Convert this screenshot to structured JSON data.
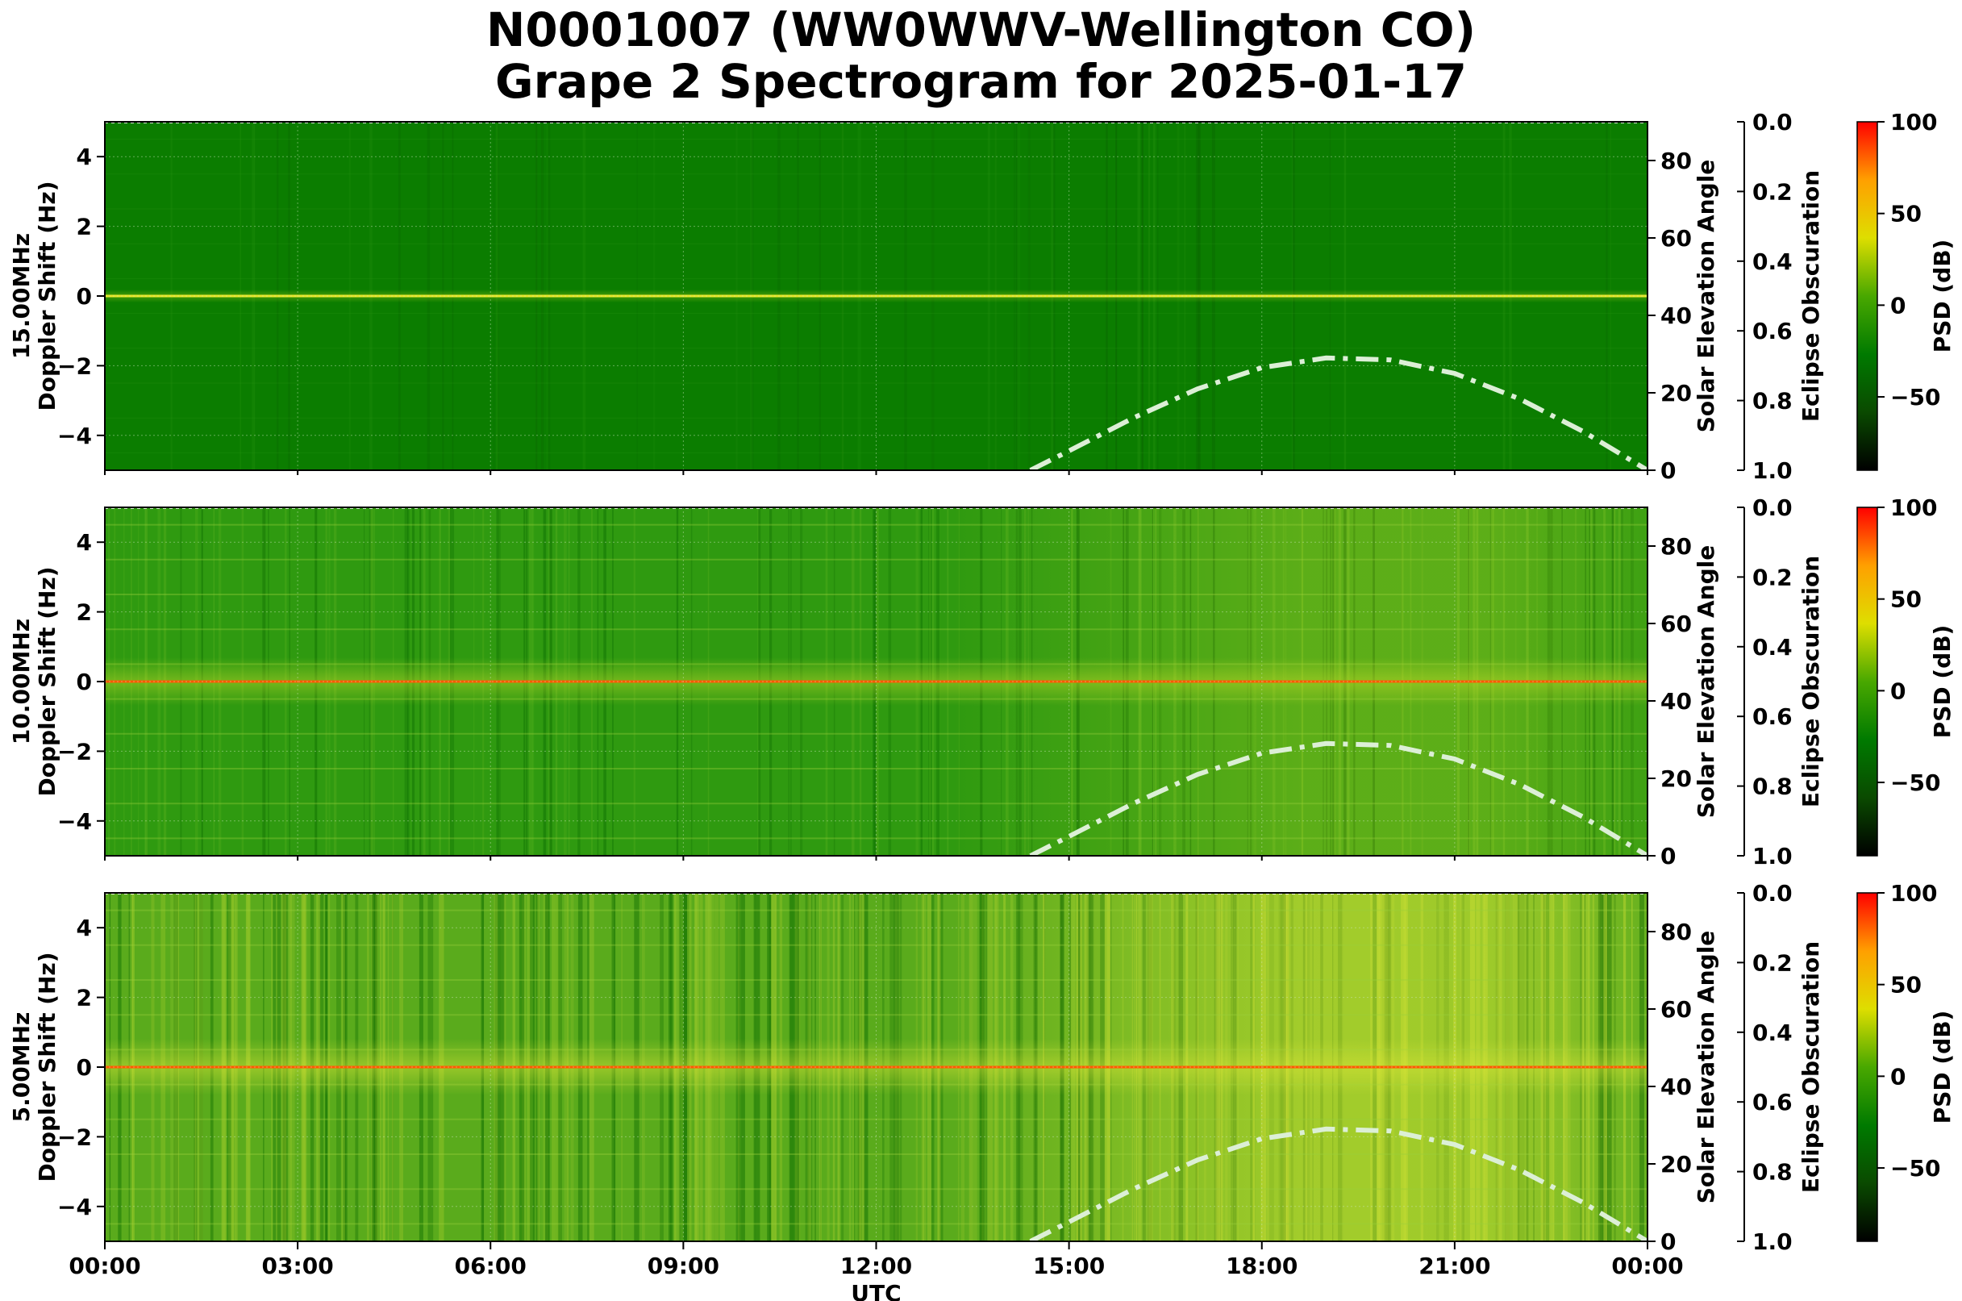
{
  "title": {
    "line1": "N0001007 (WW0WWV-Wellington CO)",
    "line2": "Grape 2 Spectrogram for 2025-01-17"
  },
  "chart_data": {
    "type": "heatmap",
    "xlabel": "UTC",
    "x_ticks": [
      "00:00",
      "03:00",
      "06:00",
      "09:00",
      "12:00",
      "15:00",
      "18:00",
      "21:00",
      "00:00"
    ],
    "xlim_hours": [
      0,
      24
    ],
    "grid": true,
    "panels": [
      {
        "name": "15.00MHz",
        "ylabel_line1": "15.00MHz",
        "ylabel_line2": "Doppler Shift (Hz)",
        "ylim": [
          -5,
          5
        ],
        "y_ticks": [
          4,
          2,
          0,
          -2,
          -4
        ],
        "y_tick_labels": [
          "4",
          "2",
          "0",
          "−2",
          "−4"
        ],
        "carrier_intensity": "moderate",
        "background_level": "low"
      },
      {
        "name": "10.00MHz",
        "ylabel_line1": "10.00MHz",
        "ylabel_line2": "Doppler Shift (Hz)",
        "ylim": [
          -5,
          5
        ],
        "y_ticks": [
          4,
          2,
          0,
          -2,
          -4
        ],
        "y_tick_labels": [
          "4",
          "2",
          "0",
          "−2",
          "−4"
        ],
        "carrier_intensity": "high",
        "background_level": "medium"
      },
      {
        "name": "5.00MHz",
        "ylabel_line1": "5.00MHz",
        "ylabel_line2": "Doppler Shift (Hz)",
        "ylim": [
          -5,
          5
        ],
        "y_ticks": [
          4,
          2,
          0,
          -2,
          -4
        ],
        "y_tick_labels": [
          "4",
          "2",
          "0",
          "−2",
          "−4"
        ],
        "carrier_intensity": "high",
        "background_level": "high"
      }
    ],
    "solar_elevation": {
      "axis_label": "Solar Elevation Angle",
      "ylim": [
        0,
        90
      ],
      "ticks": [
        "0",
        "20",
        "40",
        "60",
        "80"
      ],
      "line_style": "dash-dot",
      "line_color": "#dcefd6",
      "points": [
        {
          "utc": 14.4,
          "deg": 0
        },
        {
          "utc": 15.0,
          "deg": 5
        },
        {
          "utc": 16.0,
          "deg": 13.5
        },
        {
          "utc": 17.0,
          "deg": 21
        },
        {
          "utc": 18.0,
          "deg": 26.5
        },
        {
          "utc": 19.0,
          "deg": 29
        },
        {
          "utc": 20.0,
          "deg": 28.5
        },
        {
          "utc": 21.0,
          "deg": 25
        },
        {
          "utc": 22.0,
          "deg": 18.5
        },
        {
          "utc": 23.0,
          "deg": 10
        },
        {
          "utc": 24.0,
          "deg": 0
        }
      ]
    },
    "eclipse_obscuration": {
      "axis_label": "Eclipse Obscuration",
      "ylim": [
        0,
        1
      ],
      "ticks": [
        "0.0",
        "0.2",
        "0.4",
        "0.6",
        "0.8",
        "1.0"
      ]
    },
    "colorbar": {
      "label": "PSD (dB)",
      "range": [
        -90,
        100
      ],
      "ticks": [
        {
          "value": 100,
          "label": "100"
        },
        {
          "value": 50,
          "label": "50"
        },
        {
          "value": 0,
          "label": "0"
        },
        {
          "value": -50,
          "label": "−50"
        }
      ],
      "colormap": [
        "#000000",
        "#0a4a00",
        "#007a00",
        "#49a800",
        "#dede00",
        "#ffa000",
        "#ff0000"
      ]
    }
  }
}
